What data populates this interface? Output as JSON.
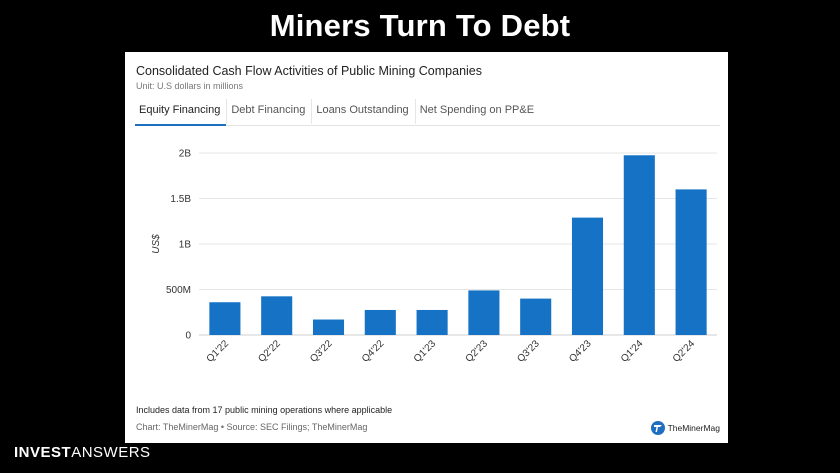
{
  "slide": {
    "title": "Miners Turn To Debt",
    "logo_bold": "INVEST",
    "logo_light": "ANSWERS"
  },
  "card": {
    "title": "Consolidated Cash Flow Activities of Public Mining Companies",
    "subtitle": "Unit: U.S dollars in millions",
    "tabs": [
      {
        "label": "Equity Financing",
        "active": true
      },
      {
        "label": "Debt Financing",
        "active": false
      },
      {
        "label": "Loans Outstanding",
        "active": false
      },
      {
        "label": "Net Spending on PP&E",
        "active": false
      }
    ],
    "note": "Includes data from 17 public mining operations where applicable",
    "source": "Chart: TheMinerMag • Source: SEC Filings; TheMinerMag",
    "brand": "TheMinerMag"
  },
  "colors": {
    "bar": "#1572c4",
    "grid": "#e6e6e6",
    "accent": "#1f6fc1"
  },
  "chart_data": {
    "type": "bar",
    "categories": [
      "Q1'22",
      "Q2'22",
      "Q3'22",
      "Q4'22",
      "Q1'23",
      "Q2'23",
      "Q3'23",
      "Q4'23",
      "Q1'24",
      "Q2'24"
    ],
    "values": [
      360,
      425,
      170,
      275,
      275,
      490,
      400,
      1290,
      1975,
      1600
    ],
    "ylabel": "US$",
    "ylim": [
      0,
      2000
    ],
    "yticks": [
      0,
      500,
      1000,
      1500,
      2000
    ],
    "ytick_labels": [
      "0",
      "500M",
      "1B",
      "1.5B",
      "2B"
    ],
    "grid": true
  }
}
